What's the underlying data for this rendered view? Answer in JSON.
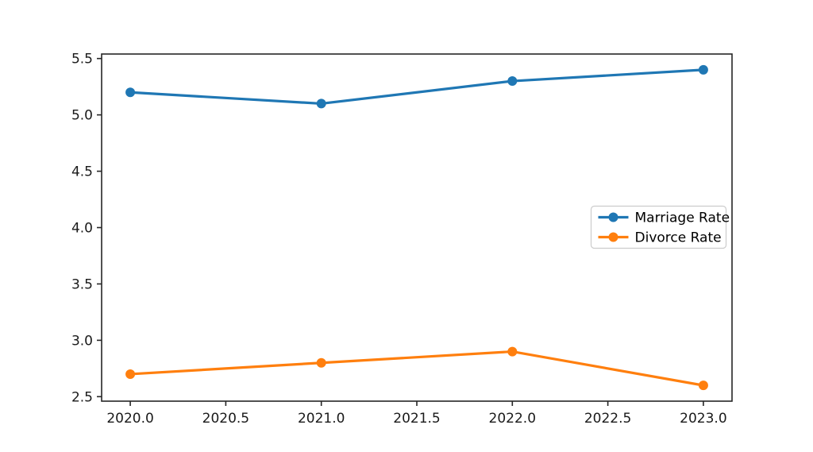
{
  "figure": {
    "background": "#ffffff"
  },
  "chart_data": {
    "type": "line",
    "title": "",
    "xlabel": "",
    "ylabel": "",
    "x": [
      2020,
      2021,
      2022,
      2023
    ],
    "series": [
      {
        "name": "Marriage Rate",
        "values": [
          5.2,
          5.1,
          5.3,
          5.4
        ],
        "color": "#1f77b4",
        "marker": "circle"
      },
      {
        "name": "Divorce Rate",
        "values": [
          2.7,
          2.8,
          2.9,
          2.6
        ],
        "color": "#ff7f0e",
        "marker": "circle"
      }
    ],
    "xlim": [
      2019.85,
      2023.15
    ],
    "ylim": [
      2.46,
      5.54
    ],
    "x_ticks": [
      2020.0,
      2020.5,
      2021.0,
      2021.5,
      2022.0,
      2022.5,
      2023.0
    ],
    "x_tick_labels": [
      "2020.0",
      "2020.5",
      "2021.0",
      "2021.5",
      "2022.0",
      "2022.5",
      "2023.0"
    ],
    "y_ticks": [
      2.5,
      3.0,
      3.5,
      4.0,
      4.5,
      5.0,
      5.5
    ],
    "y_tick_labels": [
      "2.5",
      "3.0",
      "3.5",
      "4.0",
      "4.5",
      "5.0",
      "5.5"
    ],
    "grid": false,
    "legend": {
      "position": "center-right",
      "entries": [
        "Marriage Rate",
        "Divorce Rate"
      ],
      "border_color": "#cccccc",
      "background": "#ffffff"
    },
    "spine_color": "#262626",
    "tick_color": "#262626",
    "tick_label_color": "#1a1a1a"
  }
}
